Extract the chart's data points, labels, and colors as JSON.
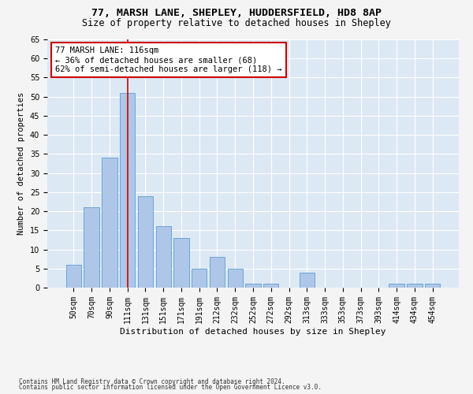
{
  "title1": "77, MARSH LANE, SHEPLEY, HUDDERSFIELD, HD8 8AP",
  "title2": "Size of property relative to detached houses in Shepley",
  "xlabel": "Distribution of detached houses by size in Shepley",
  "ylabel": "Number of detached properties",
  "footnote1": "Contains HM Land Registry data © Crown copyright and database right 2024.",
  "footnote2": "Contains public sector information licensed under the Open Government Licence v3.0.",
  "bar_labels": [
    "50sqm",
    "70sqm",
    "90sqm",
    "111sqm",
    "131sqm",
    "151sqm",
    "171sqm",
    "191sqm",
    "212sqm",
    "232sqm",
    "252sqm",
    "272sqm",
    "292sqm",
    "313sqm",
    "333sqm",
    "353sqm",
    "373sqm",
    "393sqm",
    "414sqm",
    "434sqm",
    "454sqm"
  ],
  "bar_values": [
    6,
    21,
    34,
    51,
    24,
    16,
    13,
    5,
    8,
    5,
    1,
    1,
    0,
    4,
    0,
    0,
    0,
    0,
    1,
    1,
    1
  ],
  "bar_color": "#aec6e8",
  "bar_edge_color": "#5a9fd4",
  "property_line_index": 3,
  "property_line_color": "#cc0000",
  "annotation_text": "77 MARSH LANE: 116sqm\n← 36% of detached houses are smaller (68)\n62% of semi-detached houses are larger (118) →",
  "annotation_box_color": "#ffffff",
  "annotation_box_edge": "#cc0000",
  "ylim": [
    0,
    65
  ],
  "background_color": "#dde8f5",
  "grid_color": "#ffffff",
  "fig_background": "#f4f4f4",
  "title_fontsize": 9.5,
  "subtitle_fontsize": 8.5,
  "tick_fontsize": 7,
  "ylabel_fontsize": 7.5,
  "xlabel_fontsize": 8,
  "annotation_fontsize": 7.5,
  "footnote_fontsize": 5.5
}
